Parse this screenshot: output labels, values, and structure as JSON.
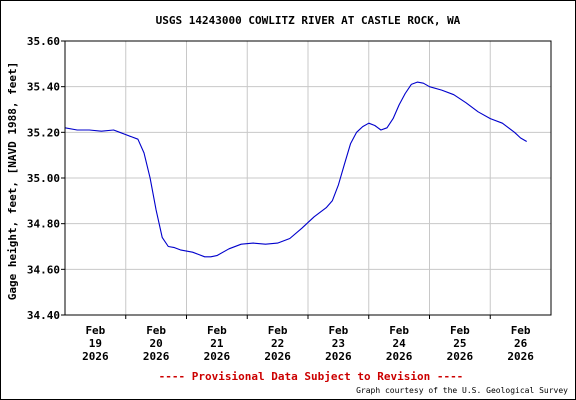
{
  "chart_data": {
    "type": "line",
    "title": "USGS 14243000 COWLITZ RIVER AT CASTLE ROCK, WA",
    "ylabel": "Gage height, feet, [NAVD 1988, feet]",
    "xlabel": "",
    "ylim": [
      34.4,
      35.6
    ],
    "xlim": [
      0,
      8
    ],
    "y_ticks": [
      {
        "value": 34.4,
        "label": "34.40"
      },
      {
        "value": 34.6,
        "label": "34.60"
      },
      {
        "value": 34.8,
        "label": "34.80"
      },
      {
        "value": 35.0,
        "label": "35.00"
      },
      {
        "value": 35.2,
        "label": "35.20"
      },
      {
        "value": 35.4,
        "label": "35.40"
      },
      {
        "value": 35.6,
        "label": "35.60"
      }
    ],
    "x_ticks": [
      {
        "value": 0.5,
        "label": [
          "Feb",
          "19",
          "2026"
        ]
      },
      {
        "value": 1.5,
        "label": [
          "Feb",
          "20",
          "2026"
        ]
      },
      {
        "value": 2.5,
        "label": [
          "Feb",
          "21",
          "2026"
        ]
      },
      {
        "value": 3.5,
        "label": [
          "Feb",
          "22",
          "2026"
        ]
      },
      {
        "value": 4.5,
        "label": [
          "Feb",
          "23",
          "2026"
        ]
      },
      {
        "value": 5.5,
        "label": [
          "Feb",
          "24",
          "2026"
        ]
      },
      {
        "value": 6.5,
        "label": [
          "Feb",
          "25",
          "2026"
        ]
      },
      {
        "value": 7.5,
        "label": [
          "Feb",
          "26",
          "2026"
        ]
      }
    ],
    "x_gridlines": [
      1,
      2,
      3,
      4,
      5,
      6,
      7
    ],
    "grid": true,
    "line_color": "#0000cc",
    "series": [
      {
        "x": [
          0.0,
          0.2,
          0.4,
          0.6,
          0.8,
          0.9,
          1.0,
          1.05,
          1.1,
          1.2,
          1.3,
          1.4,
          1.5,
          1.6,
          1.7,
          1.8,
          1.9,
          2.0,
          2.1,
          2.2,
          2.3,
          2.4,
          2.5,
          2.7,
          2.9,
          3.1,
          3.3,
          3.5,
          3.7,
          3.9,
          4.1,
          4.3,
          4.4,
          4.5,
          4.6,
          4.7,
          4.8,
          4.9,
          5.0,
          5.1,
          5.2,
          5.3,
          5.4,
          5.5,
          5.6,
          5.7,
          5.8,
          5.9,
          6.0,
          6.2,
          6.4,
          6.6,
          6.8,
          7.0,
          7.2,
          7.4,
          7.5,
          7.6
        ],
        "y": [
          35.22,
          35.21,
          35.21,
          35.205,
          35.21,
          35.2,
          35.19,
          35.185,
          35.18,
          35.17,
          35.11,
          35.0,
          34.86,
          34.74,
          34.7,
          34.695,
          34.685,
          34.68,
          34.675,
          34.665,
          34.655,
          34.655,
          34.66,
          34.69,
          34.71,
          34.715,
          34.71,
          34.715,
          34.735,
          34.78,
          34.83,
          34.87,
          34.9,
          34.97,
          35.06,
          35.15,
          35.2,
          35.225,
          35.24,
          35.23,
          35.21,
          35.22,
          35.26,
          35.32,
          35.37,
          35.41,
          35.42,
          35.415,
          35.4,
          35.385,
          35.365,
          35.33,
          35.29,
          35.26,
          35.24,
          35.2,
          35.175,
          35.16
        ]
      }
    ]
  },
  "footer": {
    "provisional_note": "---- Provisional Data Subject to Revision ----",
    "credit": "Graph courtesy of the U.S. Geological Survey"
  },
  "colors": {
    "grid": "#c8c8c8",
    "provisional_text": "#cc0000",
    "axis": "#000000"
  }
}
